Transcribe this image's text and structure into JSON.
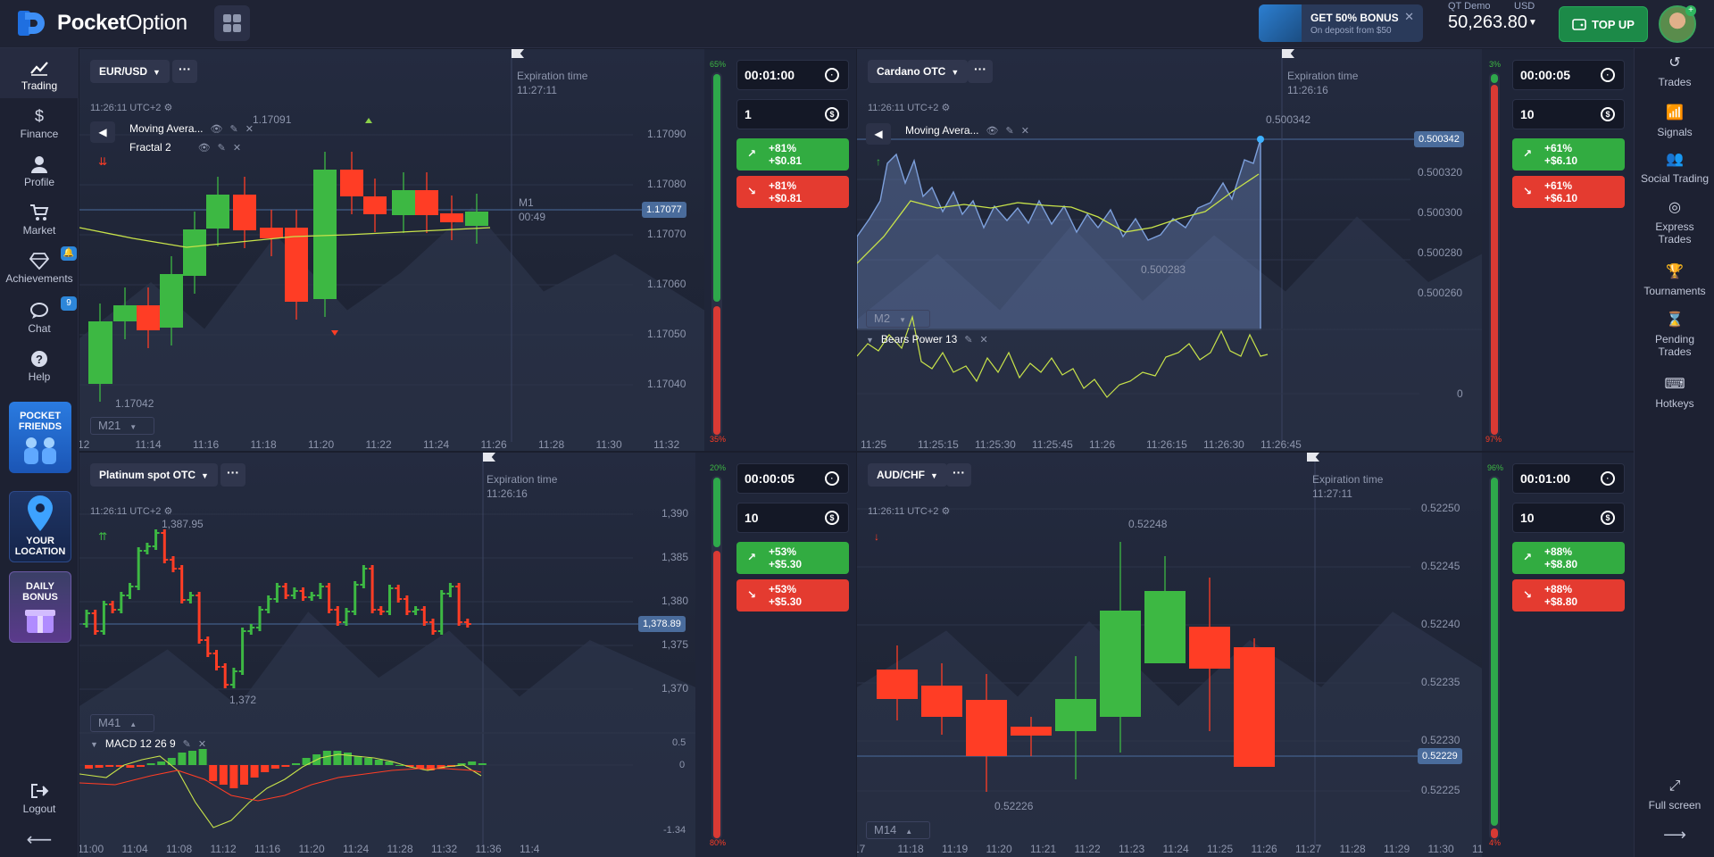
{
  "app": {
    "brand_bold": "Pocket",
    "brand_regular": "Option"
  },
  "header": {
    "bonus_title": "GET 50% BONUS",
    "bonus_sub": "On deposit from $50",
    "bonus_close": "✕",
    "account_type": "QT Demo",
    "currency": "USD",
    "balance": "50,263.80",
    "topup": "TOP UP"
  },
  "sidebar": {
    "items": [
      {
        "label": "Trading",
        "icon": "chart-line-icon"
      },
      {
        "label": "Finance",
        "icon": "dollar-icon"
      },
      {
        "label": "Profile",
        "icon": "user-icon"
      },
      {
        "label": "Market",
        "icon": "cart-icon"
      },
      {
        "label": "Achievements",
        "icon": "diamond-icon",
        "badge": "🔔"
      },
      {
        "label": "Chat",
        "icon": "chat-icon",
        "badge": "9"
      },
      {
        "label": "Help",
        "icon": "help-icon"
      }
    ],
    "promos": [
      {
        "label": "POCKET FRIENDS"
      },
      {
        "label": "YOUR LOCATION"
      },
      {
        "label": "DAILY BONUS"
      }
    ],
    "logout": "Logout"
  },
  "rightbar": {
    "items": [
      {
        "label": "Trades"
      },
      {
        "label": "Signals"
      },
      {
        "label": "Social Trading"
      },
      {
        "label": "Express Trades"
      },
      {
        "label": "Tournaments"
      },
      {
        "label": "Pending Trades"
      },
      {
        "label": "Hotkeys"
      }
    ],
    "fullscreen": "Full screen"
  },
  "charts": [
    {
      "asset": "EUR/USD",
      "time": "11:26:11 UTC+2",
      "exp_label": "Expiration time",
      "exp_time": "11:27:11",
      "timeframe": "M21",
      "indicators": [
        "Moving Avera...",
        "Fractal 2"
      ],
      "y_ticks": [
        "1.17090",
        "1.17080",
        "1.17070",
        "1.17060",
        "1.17050",
        "1.17040"
      ],
      "x_ticks": [
        "12",
        "11:14",
        "11:16",
        "11:18",
        "11:20",
        "11:22",
        "11:24",
        "11:26",
        "11:28",
        "11:30",
        "11:32"
      ],
      "price": "1.17077",
      "high_label": "1.17091",
      "low_label": "1.17042",
      "timer_tf": "M1",
      "timer": "00:49",
      "bar_top": "65%",
      "bar_bottom": "35%",
      "trade_time": "00:01:00",
      "amount": "1",
      "buy_pct": "+81%",
      "buy_amt": "+$0.81",
      "sell_pct": "+81%",
      "sell_amt": "+$0.81"
    },
    {
      "asset": "Cardano OTC",
      "time": "11:26:11 UTC+2",
      "exp_label": "Expiration time",
      "exp_time": "11:26:16",
      "timeframe": "M2",
      "indicators": [
        "Moving Avera..."
      ],
      "sub_indicator": "Bears Power  13",
      "y_ticks": [
        "0.500320",
        "0.500300",
        "0.500280",
        "0.500260"
      ],
      "sub_tick": "0",
      "x_ticks": [
        "11:25",
        "11:25:15",
        "11:25:30",
        "11:25:45",
        "11:26",
        "11:26:15",
        "11:26:30",
        "11:26:45"
      ],
      "price": "0.500342",
      "high_label": "0.500342",
      "low_label": "0.500283",
      "bar_top": "3%",
      "bar_bottom": "97%",
      "trade_time": "00:00:05",
      "amount": "10",
      "buy_pct": "+61%",
      "buy_amt": "+$6.10",
      "sell_pct": "+61%",
      "sell_amt": "+$6.10"
    },
    {
      "asset": "Platinum spot OTC",
      "time": "11:26:11 UTC+2",
      "exp_label": "Expiration time",
      "exp_time": "11:26:16",
      "timeframe": "M41",
      "sub_indicator": "MACD  12 26 9",
      "y_ticks": [
        "1,390",
        "1,385",
        "1,380",
        "1,375",
        "1,370"
      ],
      "sub_ticks": [
        "0.5",
        "0",
        "-1.34"
      ],
      "x_ticks": [
        "11:00",
        "11:04",
        "11:08",
        "11:12",
        "11:16",
        "11:20",
        "11:24",
        "11:28",
        "11:32",
        "11:36",
        "11:4"
      ],
      "price": "1,378.89",
      "high_label": "1,387.95",
      "low_label": "1,372",
      "bar_top": "20%",
      "bar_bottom": "80%",
      "trade_time": "00:00:05",
      "amount": "10",
      "buy_pct": "+53%",
      "buy_amt": "+$5.30",
      "sell_pct": "+53%",
      "sell_amt": "+$5.30"
    },
    {
      "asset": "AUD/CHF",
      "time": "11:26:11 UTC+2",
      "exp_label": "Expiration time",
      "exp_time": "11:27:11",
      "timeframe": "M14",
      "y_ticks": [
        "0.52250",
        "0.52245",
        "0.52240",
        "0.52235",
        "0.52230",
        "0.52225"
      ],
      "x_ticks": [
        "17",
        "11:18",
        "11:19",
        "11:20",
        "11:21",
        "11:22",
        "11:23",
        "11:24",
        "11:25",
        "11:26",
        "11:27",
        "11:28",
        "11:29",
        "11:30",
        "11"
      ],
      "price": "0.52229",
      "high_label": "0.52248",
      "low_label": "0.52226",
      "bar_top": "96%",
      "bar_bottom": "4%",
      "trade_time": "00:01:00",
      "amount": "10",
      "buy_pct": "+88%",
      "buy_amt": "+$8.80",
      "sell_pct": "+88%",
      "sell_amt": "+$8.80"
    }
  ],
  "colors": {
    "up": "#3db843",
    "down": "#ff3d25",
    "ma": "#c8e34a",
    "price_line": "#4a6c9c"
  }
}
